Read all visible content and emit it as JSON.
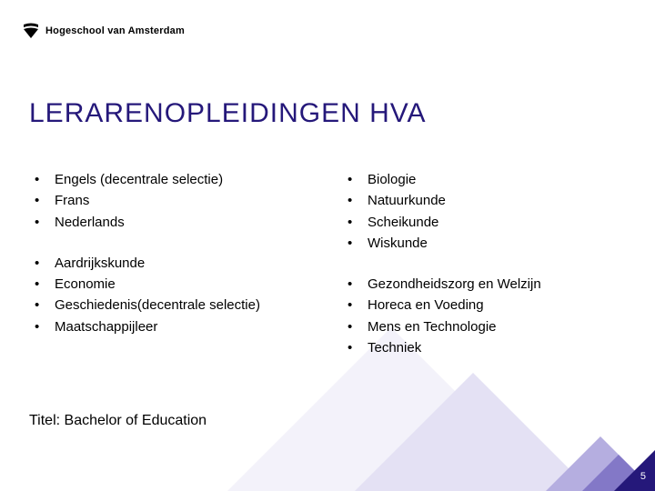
{
  "brand": {
    "name": "Hogeschool van Amsterdam",
    "logo_color": "#000000"
  },
  "title": {
    "text": "LERARENOPLEIDINGEN HVA",
    "color": "#25187a",
    "fontsize": 30
  },
  "colors": {
    "accent": "#25187a",
    "corner_light": "#b5aee0",
    "corner_mid": "#8378c7",
    "bg_tri_light": "#f3f2fa",
    "bg_tri_mid": "#e4e1f4",
    "text": "#000000",
    "pagenum": "#ffffff"
  },
  "columns": {
    "left": [
      {
        "items": [
          "Engels (decentrale selectie)",
          "Frans",
          "Nederlands"
        ]
      },
      {
        "items": [
          "Aardrijkskunde",
          "Economie",
          "Geschiedenis(decentrale selectie)",
          "Maatschappijleer"
        ]
      }
    ],
    "right": [
      {
        "items": [
          "Biologie",
          "Natuurkunde",
          "Scheikunde",
          "Wiskunde"
        ]
      },
      {
        "items": [
          "Gezondheidszorg en Welzijn",
          "Horeca en Voeding",
          "Mens en Technologie",
          "Techniek"
        ]
      }
    ]
  },
  "footer": {
    "label": "Titel: Bachelor of Education"
  },
  "page_number": "5",
  "bullet_char": "•"
}
